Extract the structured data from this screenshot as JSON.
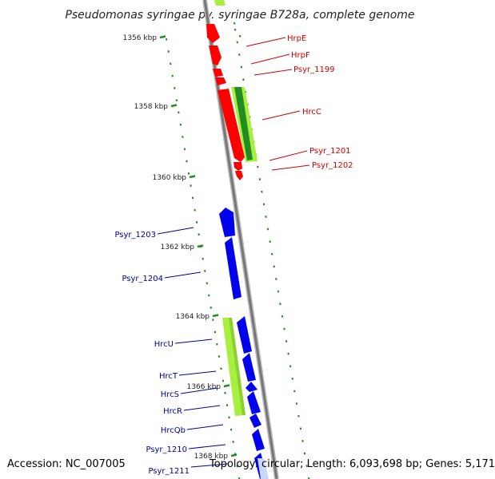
{
  "title": "Pseudomonas syringae pv. syringae B728a, complete genome",
  "footer": {
    "accession": "Accession: NC_007005",
    "topology": "Topology: circular; Length: 6,093,698 bp; Genes: 5,171"
  },
  "colors": {
    "forward_genes": "#ff0000",
    "reverse_genes": "#0000ee",
    "highlight_green": "#a8f040",
    "dark_green": "#228b22",
    "backbone": "#888888",
    "tick": "#228b22",
    "forward_labels": "#cc0000",
    "reverse_labels": "#000099"
  },
  "ticks": [
    "1356 kbp",
    "1358 kbp",
    "1360 kbp",
    "1362 kbp",
    "1364 kbp",
    "1366 kbp",
    "1368 kbp"
  ],
  "forward_labels": [
    "HrpE",
    "HrpF",
    "Psyr_1199",
    "HrcC",
    "Psyr_1201",
    "Psyr_1202"
  ],
  "reverse_labels": [
    "Psyr_1203",
    "Psyr_1204",
    "HrcU",
    "HrcT",
    "HrcS",
    "HrcR",
    "HrcQb",
    "Psyr_1210",
    "Psyr_1211"
  ]
}
